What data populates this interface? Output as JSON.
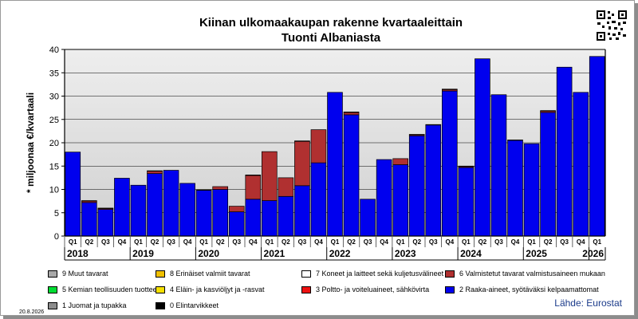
{
  "header": {
    "title_line1": "Kiinan ulkomaakaupan rakenne kvartaaleittain",
    "title_line2": "Tuonti Albaniasta"
  },
  "footer": {
    "source": "Lähde: Eurostat",
    "date": "20.8.2026"
  },
  "colors": {
    "cat2_raw_materials": "#0000ee",
    "cat6_manufactured": "#b03030",
    "cat7_machinery": "#ffffff",
    "cat9_other": "#a8a8a8",
    "cat8_misc": "#f0c000",
    "cat5_chemicals": "#00dd33",
    "cat4_oils": "#f5e000",
    "cat3_fuels": "#ee1111",
    "cat1_beverages": "#8c8c8c",
    "cat0_food": "#000000",
    "plot_bg": "#eeeeee",
    "plot_bg_dark": "#d0d0d0"
  },
  "legend": [
    {
      "label": "9 Muut tavarat",
      "color": "#a8a8a8"
    },
    {
      "label": "8 Erinäiset valmiit tavarat",
      "color": "#f0c000"
    },
    {
      "label": "7 Koneet ja laitteet sekä kuljetusvälineet",
      "color": "#ffffff"
    },
    {
      "label": "6 Valmistetut tavarat valmistusaineen mukaan",
      "color": "#b03030"
    },
    {
      "label": "5 Kemian teollisuuden tuotteet",
      "color": "#00dd33"
    },
    {
      "label": "4 Eläin- ja kasviöljyt ja -rasvat",
      "color": "#f5e000"
    },
    {
      "label": "3 Poltto- ja voiteluaineet, sähkövirta",
      "color": "#ee1111"
    },
    {
      "label": "2 Raaka-aineet, syötäväksi kelpaamattomat",
      "color": "#0000ee"
    },
    {
      "label": "1 Juomat ja tupakka",
      "color": "#8c8c8c"
    },
    {
      "label": "0 Elintarvikkeet",
      "color": "#000000"
    }
  ],
  "chart_data": {
    "type": "bar",
    "stacked": true,
    "ylabel": "* miljoonaa €/kvartaali",
    "ylim": [
      0,
      40
    ],
    "yticks": [
      0,
      5,
      10,
      15,
      20,
      25,
      30,
      35,
      40
    ],
    "grid": true,
    "categories": [
      "Q1",
      "Q2",
      "Q3",
      "Q4",
      "Q1",
      "Q2",
      "Q3",
      "Q4",
      "Q1",
      "Q2",
      "Q3",
      "Q4",
      "Q1",
      "Q2",
      "Q3",
      "Q4",
      "Q1",
      "Q2",
      "Q3",
      "Q4",
      "Q1",
      "Q2",
      "Q3",
      "Q4",
      "Q1",
      "Q2",
      "Q3",
      "Q4",
      "Q1",
      "Q2",
      "Q3",
      "Q4",
      "Q1"
    ],
    "years": [
      "2018",
      "2019",
      "2020",
      "2021",
      "2022",
      "2023",
      "2024",
      "2025",
      "2026"
    ],
    "series": [
      {
        "name": "2 Raaka-aineet, syötäväksi kelpaamattomat",
        "color": "#0000ee",
        "values": [
          18.0,
          7.2,
          5.7,
          12.4,
          10.9,
          13.4,
          14.1,
          11.3,
          9.8,
          10.0,
          5.2,
          7.9,
          7.6,
          8.5,
          10.8,
          15.7,
          30.8,
          26.0,
          7.9,
          16.4,
          15.3,
          21.5,
          23.8,
          31.1,
          14.7,
          38.0,
          30.3,
          20.5,
          19.8,
          26.5,
          36.2,
          30.8,
          38.5
        ]
      },
      {
        "name": "6 Valmistetut tavarat valmistusaineen mukaan",
        "color": "#b03030",
        "values": [
          0.0,
          0.3,
          0.2,
          0.0,
          0.0,
          0.5,
          0.0,
          0.0,
          0.0,
          0.6,
          1.2,
          5.1,
          10.5,
          4.0,
          9.5,
          7.1,
          0.0,
          0.5,
          0.0,
          0.0,
          1.3,
          0.2,
          0.1,
          0.3,
          0.2,
          0.0,
          0.0,
          0.1,
          0.0,
          0.3,
          0.0,
          0.0,
          0.0
        ]
      },
      {
        "name": "7 Koneet ja laitteet sekä kuljetusvälineet",
        "color": "#ffffff",
        "values": [
          0.0,
          0.1,
          0.1,
          0.0,
          0.0,
          0.1,
          0.0,
          0.0,
          0.1,
          0.0,
          0.0,
          0.1,
          0.0,
          0.0,
          0.1,
          0.0,
          0.0,
          0.1,
          0.0,
          0.0,
          0.0,
          0.1,
          0.0,
          0.1,
          0.1,
          0.0,
          0.0,
          0.0,
          0.0,
          0.1,
          0.0,
          0.0,
          0.0
        ]
      }
    ]
  }
}
